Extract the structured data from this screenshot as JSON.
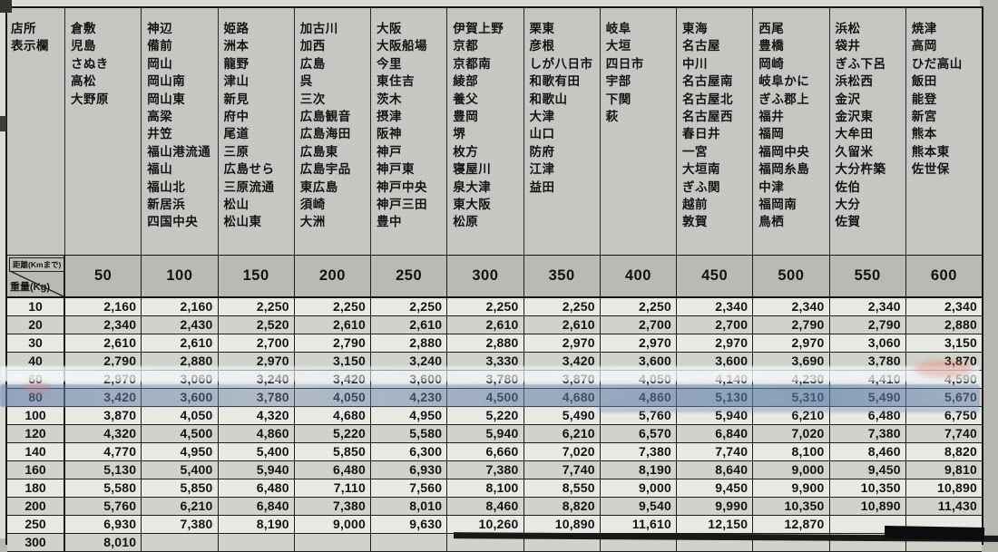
{
  "table": {
    "corner": {
      "header_line1": "店所",
      "header_line2": "表示欄",
      "distance_label": "距離(Kmまで)",
      "weight_label": "重量(Kg)"
    },
    "columns": [
      {
        "distance": "50",
        "locations": [
          "倉敷",
          "児島",
          "さぬき",
          "高松",
          "大野原"
        ]
      },
      {
        "distance": "100",
        "locations": [
          "神辺",
          "備前",
          "岡山",
          "岡山南",
          "岡山東",
          "高梁",
          "井笠",
          "福山港流通",
          "福山",
          "福山北",
          "新居浜",
          "四国中央"
        ]
      },
      {
        "distance": "150",
        "locations": [
          "姫路",
          "洲本",
          "龍野",
          "津山",
          "新見",
          "府中",
          "尾道",
          "三原",
          "広島せら",
          "三原流通",
          "松山",
          "松山東"
        ]
      },
      {
        "distance": "200",
        "locations": [
          "加古川",
          "加西",
          "広島",
          "呉",
          "三次",
          "広島観音",
          "広島海田",
          "広島東",
          "広島宇品",
          "東広島",
          "須崎",
          "大洲"
        ]
      },
      {
        "distance": "250",
        "locations": [
          "大阪",
          "大阪船場",
          "今里",
          "東住吉",
          "茨木",
          "摂津",
          "阪神",
          "神戸",
          "神戸東",
          "神戸中央",
          "神戸三田",
          "豊中"
        ]
      },
      {
        "distance": "300",
        "locations": [
          "伊賀上野",
          "京都",
          "京都南",
          "綾部",
          "養父",
          "豊岡",
          "堺",
          "枚方",
          "寝屋川",
          "泉大津",
          "東大阪",
          "松原"
        ]
      },
      {
        "distance": "350",
        "locations": [
          "栗東",
          "彦根",
          "しが八日市",
          "和歌有田",
          "和歌山",
          "大津",
          "山口",
          "防府",
          "江津",
          "益田"
        ]
      },
      {
        "distance": "400",
        "locations": [
          "岐阜",
          "大垣",
          "四日市",
          "宇部",
          "下関",
          "萩"
        ]
      },
      {
        "distance": "450",
        "locations": [
          "東海",
          "名古屋",
          "中川",
          "名古屋南",
          "名古屋北",
          "名古屋西",
          "春日井",
          "一宮",
          "大垣南",
          "ぎふ関",
          "越前",
          "敦賀"
        ]
      },
      {
        "distance": "500",
        "locations": [
          "西尾",
          "豊橋",
          "岡崎",
          "岐阜かに",
          "ぎふ郡上",
          "福井",
          "福岡",
          "福岡中央",
          "福岡糸島",
          "中津",
          "福岡南",
          "鳥栖"
        ]
      },
      {
        "distance": "550",
        "locations": [
          "浜松",
          "袋井",
          "ぎふ下呂",
          "浜松西",
          "金沢",
          "金沢東",
          "大牟田",
          "久留米",
          "大分杵築",
          "佐伯",
          "大分",
          "佐賀"
        ]
      },
      {
        "distance": "600",
        "locations": [
          "焼津",
          "高岡",
          "ひだ高山",
          "飯田",
          "能登",
          "新宮",
          "熊本",
          "熊本東",
          "佐世保"
        ]
      }
    ],
    "rows": [
      {
        "weight": "10",
        "values": [
          "2,160",
          "2,160",
          "2,250",
          "2,250",
          "2,250",
          "2,250",
          "2,250",
          "2,250",
          "2,340",
          "2,340",
          "2,340",
          "2,340"
        ]
      },
      {
        "weight": "20",
        "values": [
          "2,340",
          "2,430",
          "2,520",
          "2,610",
          "2,610",
          "2,610",
          "2,610",
          "2,700",
          "2,700",
          "2,790",
          "2,790",
          "2,880"
        ]
      },
      {
        "weight": "30",
        "values": [
          "2,610",
          "2,610",
          "2,700",
          "2,790",
          "2,880",
          "2,880",
          "2,970",
          "2,970",
          "2,970",
          "2,970",
          "3,060",
          "3,150"
        ]
      },
      {
        "weight": "40",
        "values": [
          "2,790",
          "2,880",
          "2,970",
          "3,150",
          "3,240",
          "3,330",
          "3,420",
          "3,600",
          "3,600",
          "3,690",
          "3,780",
          "3,870"
        ]
      },
      {
        "weight": "60",
        "values": [
          "2,970",
          "3,060",
          "3,240",
          "3,420",
          "3,600",
          "3,780",
          "3,870",
          "4,050",
          "4,140",
          "4,230",
          "4,410",
          "4,590"
        ]
      },
      {
        "weight": "80",
        "values": [
          "3,420",
          "3,600",
          "3,780",
          "4,050",
          "4,230",
          "4,500",
          "4,680",
          "4,860",
          "5,130",
          "5,310",
          "5,490",
          "5,670"
        ]
      },
      {
        "weight": "100",
        "values": [
          "3,870",
          "4,050",
          "4,320",
          "4,680",
          "4,950",
          "5,220",
          "5,490",
          "5,760",
          "5,940",
          "6,210",
          "6,480",
          "6,750"
        ]
      },
      {
        "weight": "120",
        "values": [
          "4,320",
          "4,500",
          "4,860",
          "5,220",
          "5,580",
          "5,940",
          "6,210",
          "6,570",
          "6,840",
          "7,020",
          "7,380",
          "7,740"
        ]
      },
      {
        "weight": "140",
        "values": [
          "4,770",
          "4,950",
          "5,400",
          "5,850",
          "6,300",
          "6,660",
          "7,020",
          "7,380",
          "7,740",
          "8,100",
          "8,460",
          "8,820"
        ]
      },
      {
        "weight": "160",
        "values": [
          "5,130",
          "5,400",
          "5,940",
          "6,480",
          "6,930",
          "7,380",
          "7,740",
          "8,190",
          "8,640",
          "9,000",
          "9,450",
          "9,810"
        ]
      },
      {
        "weight": "180",
        "values": [
          "5,580",
          "5,850",
          "6,480",
          "7,110",
          "7,560",
          "8,100",
          "8,550",
          "9,000",
          "9,450",
          "9,900",
          "10,350",
          "10,890"
        ]
      },
      {
        "weight": "200",
        "values": [
          "5,760",
          "6,210",
          "6,840",
          "7,380",
          "8,010",
          "8,460",
          "8,820",
          "9,540",
          "9,990",
          "10,350",
          "10,890",
          "11,430"
        ]
      },
      {
        "weight": "250",
        "values": [
          "6,930",
          "7,380",
          "8,190",
          "9,000",
          "9,630",
          "10,260",
          "10,890",
          "11,610",
          "12,150",
          "12,870",
          "",
          ""
        ]
      }
    ],
    "partial_row": {
      "weight": "300",
      "values": [
        "8,010",
        "",
        "",
        "",
        "",
        "",
        "",
        "",
        "",
        "",
        "",
        ""
      ]
    },
    "highlighted_weight": "80"
  },
  "colors": {
    "paper": "#dcdad5",
    "header_bg": "#c6c7c2",
    "distance_row_bg": "#b9bab4",
    "row_light": "#e9e9e4",
    "row_shade": "#d2d2cc",
    "highlighter_blue": "#6281b0",
    "border": "#1c1c1b"
  }
}
